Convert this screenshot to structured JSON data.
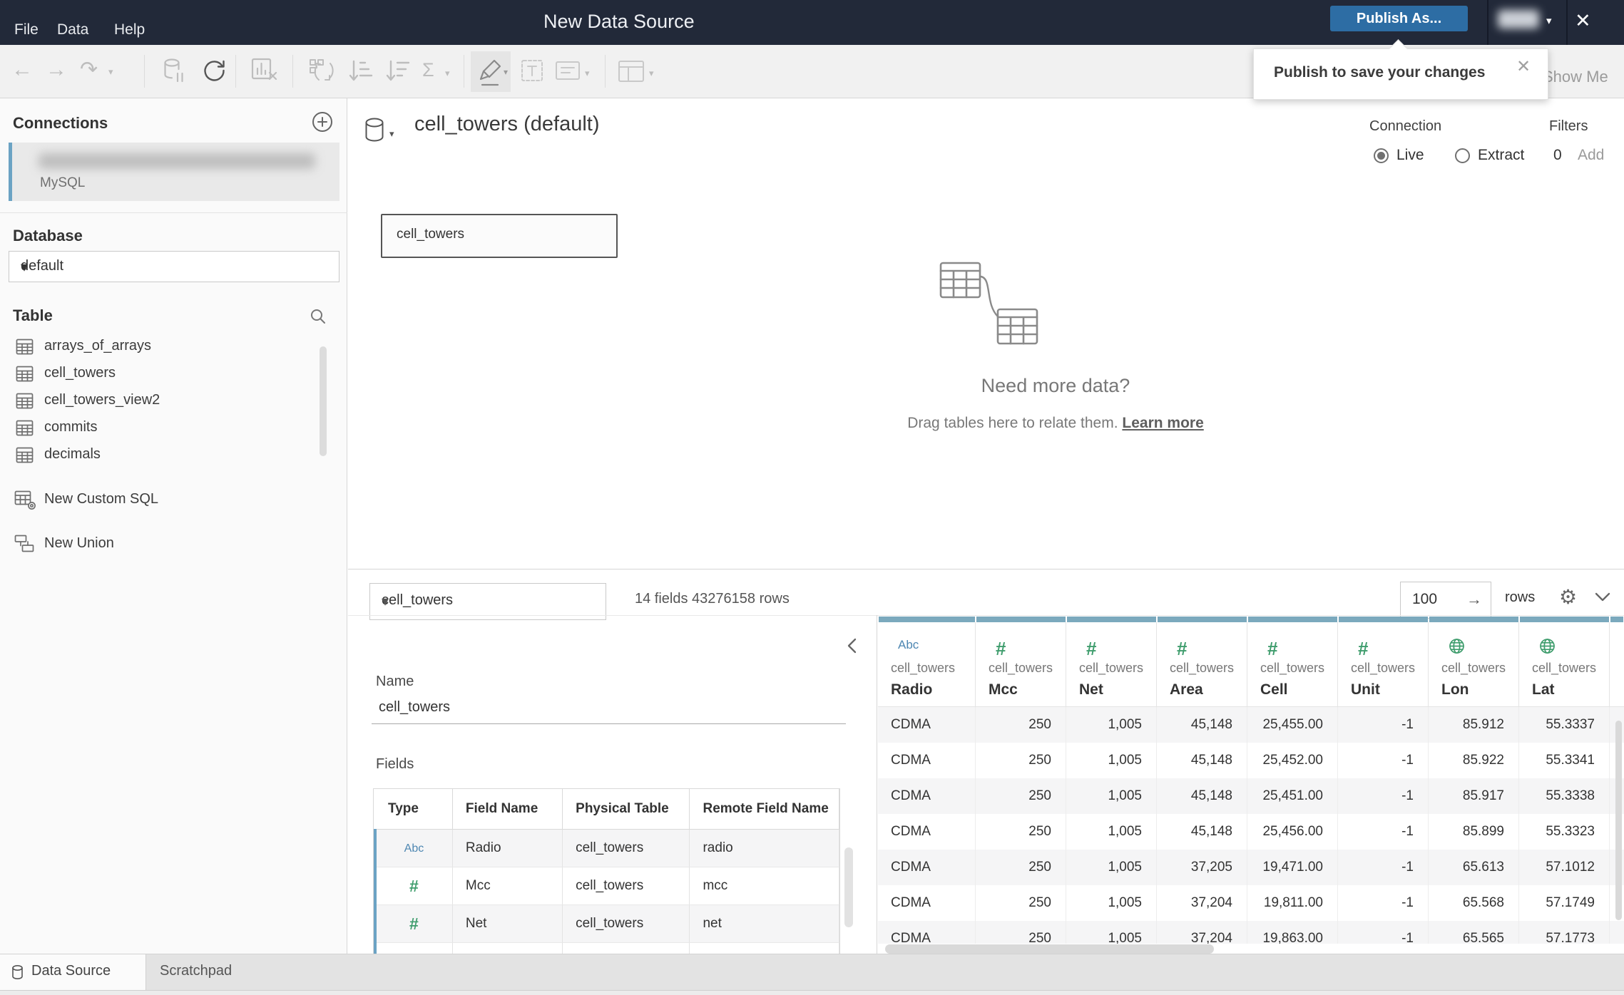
{
  "titlebar": {
    "menus": [
      "File",
      "Data",
      "Help"
    ],
    "title": "New Data Source",
    "publish_label": "Publish As...",
    "close_glyph": "✕",
    "user_caret": "▾"
  },
  "tooltip": {
    "text": "Publish to save your changes",
    "close_glyph": "✕"
  },
  "toolbar": {
    "show_me": "Show Me",
    "back_glyph": "←",
    "forward_glyph": "→",
    "redo_glyph": "↷",
    "sigma_glyph": "Σ",
    "caret_glyph": "▾"
  },
  "sidebar": {
    "connections_title": "Connections",
    "connection": {
      "type": "MySQL"
    },
    "database_label": "Database",
    "database_value": "default",
    "table_label": "Table",
    "tables": [
      "arrays_of_arrays",
      "cell_towers",
      "cell_towers_view2",
      "commits",
      "decimals"
    ],
    "actions": [
      {
        "label": "New Custom SQL"
      },
      {
        "label": "New Union"
      }
    ]
  },
  "canvas": {
    "datasource_title": "cell_towers (default)",
    "connection_label": "Connection",
    "live_label": "Live",
    "extract_label": "Extract",
    "filters_label": "Filters",
    "filters_count": "0",
    "filters_add": "Add",
    "node_label": "cell_towers",
    "empty_title": "Need more data?",
    "empty_subtitle": "Drag tables here to relate them. ",
    "learn_more": "Learn more"
  },
  "bottom": {
    "table_select": "cell_towers",
    "summary": "14 fields 43276158 rows",
    "rows_value": "100",
    "rows_arrow": "→",
    "rows_label": "rows",
    "gear_glyph": "⚙",
    "name_label": "Name",
    "name_value": "cell_towers",
    "fields_label": "Fields",
    "fields_columns": [
      "Type",
      "Field Name",
      "Physical Table",
      "Remote Field Name"
    ],
    "fields_rows": [
      {
        "type": "Abc",
        "name": "Radio",
        "physical": "cell_towers",
        "remote": "radio"
      },
      {
        "type": "#",
        "name": "Mcc",
        "physical": "cell_towers",
        "remote": "mcc"
      },
      {
        "type": "#",
        "name": "Net",
        "physical": "cell_towers",
        "remote": "net"
      }
    ],
    "grid_columns": [
      {
        "icon": "Abc",
        "table": "cell_towers",
        "name": "Radio"
      },
      {
        "icon": "#",
        "table": "cell_towers",
        "name": "Mcc"
      },
      {
        "icon": "#",
        "table": "cell_towers",
        "name": "Net"
      },
      {
        "icon": "#",
        "table": "cell_towers",
        "name": "Area"
      },
      {
        "icon": "#",
        "table": "cell_towers",
        "name": "Cell"
      },
      {
        "icon": "#",
        "table": "cell_towers",
        "name": "Unit"
      },
      {
        "icon": "globe",
        "table": "cell_towers",
        "name": "Lon"
      },
      {
        "icon": "globe",
        "table": "cell_towers",
        "name": "Lat"
      }
    ],
    "grid_rows": [
      [
        "CDMA",
        "250",
        "1,005",
        "45,148",
        "25,455.00",
        "-1",
        "85.912",
        "55.3337"
      ],
      [
        "CDMA",
        "250",
        "1,005",
        "45,148",
        "25,452.00",
        "-1",
        "85.922",
        "55.3341"
      ],
      [
        "CDMA",
        "250",
        "1,005",
        "45,148",
        "25,451.00",
        "-1",
        "85.917",
        "55.3338"
      ],
      [
        "CDMA",
        "250",
        "1,005",
        "45,148",
        "25,456.00",
        "-1",
        "85.899",
        "55.3323"
      ],
      [
        "CDMA",
        "250",
        "1,005",
        "37,205",
        "19,471.00",
        "-1",
        "65.613",
        "57.1012"
      ],
      [
        "CDMA",
        "250",
        "1,005",
        "37,204",
        "19,811.00",
        "-1",
        "65.568",
        "57.1749"
      ],
      [
        "CDMA",
        "250",
        "1,005",
        "37,204",
        "19,863.00",
        "-1",
        "65.565",
        "57.1773"
      ]
    ]
  },
  "statusbar": {
    "tabs": [
      {
        "label": "Data Source",
        "active": true
      },
      {
        "label": "Scratchpad",
        "active": false
      }
    ]
  },
  "colors": {
    "titlebar_bg": "#222939",
    "publish_blue": "#2d6da4",
    "column_header_bar": "#7ba9bd",
    "numeric_green": "#3f9d6d",
    "string_blue": "#4e87b2",
    "connection_accent": "#6ba3c4"
  }
}
